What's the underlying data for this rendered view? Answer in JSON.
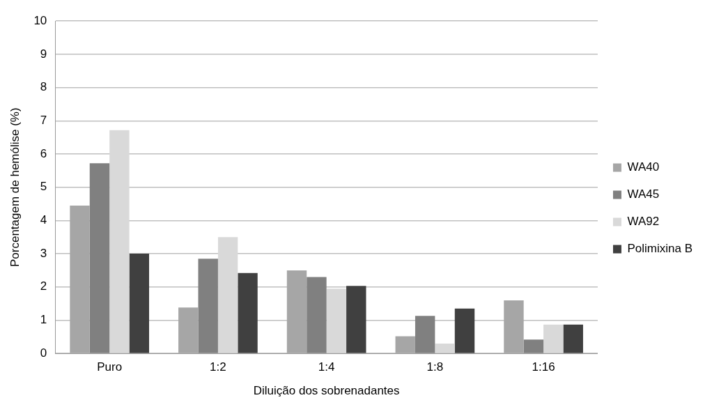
{
  "chart_data": {
    "type": "bar",
    "xlabel": "Diluição dos sobrenadantes",
    "ylabel": "Porcentagem de hemólise (%)",
    "categories": [
      "Puro",
      "1:2",
      "1:4",
      "1:8",
      "1:16"
    ],
    "series": [
      {
        "name": "WA40",
        "color": "#a6a6a6",
        "values": [
          4.45,
          1.38,
          2.5,
          0.52,
          1.6
        ]
      },
      {
        "name": "WA45",
        "color": "#808080",
        "values": [
          5.72,
          2.85,
          2.3,
          1.13,
          0.42
        ]
      },
      {
        "name": "WA92",
        "color": "#d9d9d9",
        "values": [
          6.72,
          3.5,
          1.95,
          0.3,
          0.87
        ]
      },
      {
        "name": "Polimixina B",
        "color": "#404040",
        "values": [
          3.0,
          2.42,
          2.03,
          1.35,
          0.87
        ]
      }
    ],
    "ylim": [
      0,
      10
    ],
    "yticks": [
      0,
      1,
      2,
      3,
      4,
      5,
      6,
      7,
      8,
      9,
      10
    ],
    "grid": "y",
    "legend": "right"
  }
}
